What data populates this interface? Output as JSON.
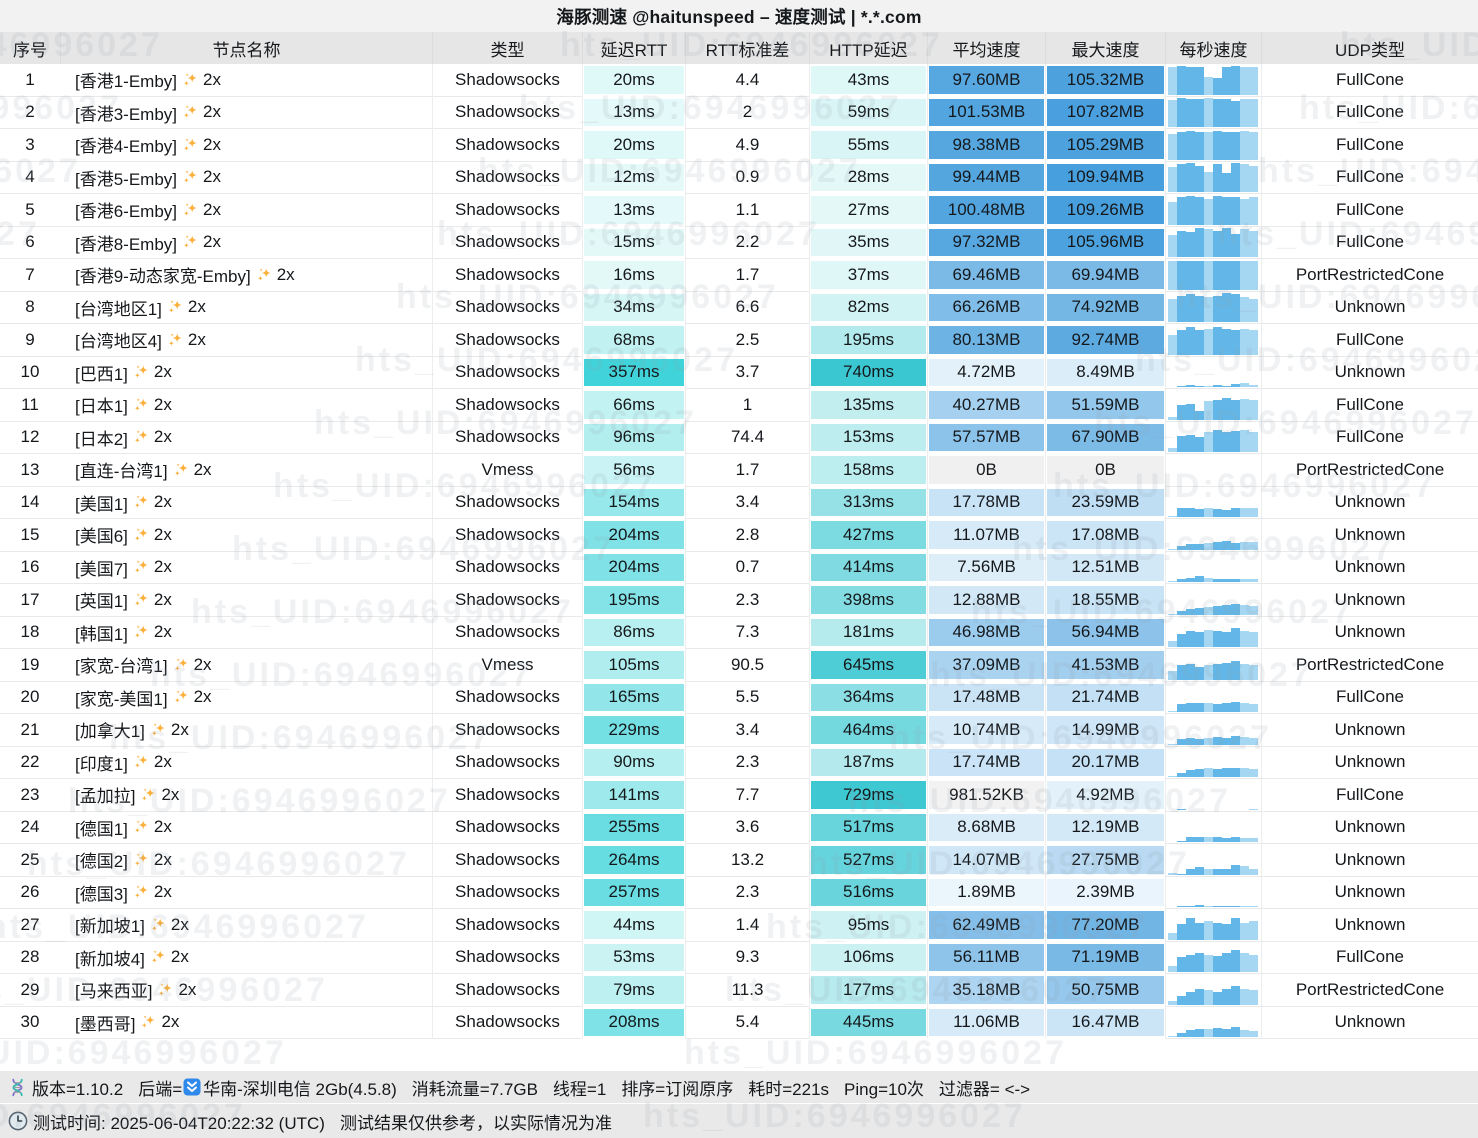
{
  "title": "海豚测速 @haitunspeed – 速度测试 | *.*.com",
  "watermark": "hts_UID:6946996027",
  "columns": [
    "序号",
    "节点名称",
    "类型",
    "延迟RTT",
    "RTT标准差",
    "HTTP延迟",
    "平均速度",
    "最大速度",
    "每秒速度",
    "UDP类型"
  ],
  "colors": {
    "latency_light": "#f1fcfb",
    "latency_deep": "#40d4da",
    "http_deep": "#3bc7d2",
    "speed_light": "#f1f8fd",
    "speed_deep": "#479fdd",
    "zero_grey": "#f0f0f0",
    "kb_grey": "#f2f2f2",
    "bar_main": "#63b7e8",
    "bar_light": "#a5d6f2",
    "sparkle_orange": "#fbb03b"
  },
  "rows": [
    {
      "n": "1",
      "name": "[香港1-Emby]",
      "mult": "2x",
      "type": "Shadowsocks",
      "rtt": "20ms",
      "rttv": 20,
      "std": "4.4",
      "http": "43ms",
      "httpv": 43,
      "avg": "97.60MB",
      "avgv": 97.6,
      "max": "105.32MB",
      "maxv": 105.32,
      "udp": "FullCone",
      "bars": [
        0.97,
        1,
        0.95,
        0.98,
        0.62,
        0.6,
        0.97,
        1,
        0.98,
        0.96
      ]
    },
    {
      "n": "2",
      "name": "[香港3-Emby]",
      "mult": "2x",
      "type": "Shadowsocks",
      "rtt": "13ms",
      "rttv": 13,
      "std": "2",
      "http": "59ms",
      "httpv": 59,
      "avg": "101.53MB",
      "avgv": 101.53,
      "max": "107.82MB",
      "maxv": 107.82,
      "udp": "FullCone",
      "bars": [
        0.93,
        1,
        0.96,
        0.98,
        1,
        0.97,
        0.95,
        0.9,
        0.97,
        0.95
      ]
    },
    {
      "n": "3",
      "name": "[香港4-Emby]",
      "mult": "2x",
      "type": "Shadowsocks",
      "rtt": "20ms",
      "rttv": 20,
      "std": "4.9",
      "http": "55ms",
      "httpv": 55,
      "avg": "98.38MB",
      "avgv": 98.38,
      "max": "105.29MB",
      "maxv": 105.29,
      "udp": "FullCone",
      "bars": [
        0.9,
        0.97,
        1,
        0.95,
        0.97,
        1,
        0.98,
        0.96,
        1,
        0.97
      ]
    },
    {
      "n": "4",
      "name": "[香港5-Emby]",
      "mult": "2x",
      "type": "Shadowsocks",
      "rtt": "12ms",
      "rttv": 12,
      "std": "0.9",
      "http": "28ms",
      "httpv": 28,
      "avg": "99.44MB",
      "avgv": 99.44,
      "max": "109.94MB",
      "maxv": 109.94,
      "udp": "FullCone",
      "bars": [
        0.85,
        0.95,
        1,
        0.9,
        0.7,
        0.97,
        0.65,
        1,
        0.95,
        0.9
      ]
    },
    {
      "n": "5",
      "name": "[香港6-Emby]",
      "mult": "2x",
      "type": "Shadowsocks",
      "rtt": "13ms",
      "rttv": 13,
      "std": "1.1",
      "http": "27ms",
      "httpv": 27,
      "avg": "100.48MB",
      "avgv": 100.48,
      "max": "109.26MB",
      "maxv": 109.26,
      "udp": "FullCone",
      "bars": [
        0.8,
        0.95,
        1,
        0.97,
        0.9,
        1,
        0.95,
        0.97,
        0.9,
        0.95
      ]
    },
    {
      "n": "6",
      "name": "[香港8-Emby]",
      "mult": "2x",
      "type": "Shadowsocks",
      "rtt": "15ms",
      "rttv": 15,
      "std": "2.2",
      "http": "35ms",
      "httpv": 35,
      "avg": "97.32MB",
      "avgv": 97.32,
      "max": "105.96MB",
      "maxv": 105.96,
      "udp": "FullCone",
      "bars": [
        0.75,
        0.9,
        0.85,
        1,
        0.95,
        0.9,
        1,
        0.8,
        0.95,
        0.9
      ]
    },
    {
      "n": "7",
      "name": "[香港9-动态家宽-Emby]",
      "mult": "2x",
      "type": "Shadowsocks",
      "rtt": "16ms",
      "rttv": 16,
      "std": "1.7",
      "http": "37ms",
      "httpv": 37,
      "avg": "69.46MB",
      "avgv": 69.46,
      "max": "69.94MB",
      "maxv": 69.94,
      "udp": "PortRestrictedCone",
      "bars": [
        1,
        1,
        1,
        1,
        1,
        1,
        1,
        1,
        1,
        1
      ]
    },
    {
      "n": "8",
      "name": "[台湾地区1]",
      "mult": "2x",
      "type": "Shadowsocks",
      "rtt": "34ms",
      "rttv": 34,
      "std": "6.6",
      "http": "82ms",
      "httpv": 82,
      "avg": "66.26MB",
      "avgv": 66.26,
      "max": "74.92MB",
      "maxv": 74.92,
      "udp": "Unknown",
      "bars": [
        0.8,
        0.9,
        0.95,
        0.9,
        0.85,
        0.9,
        1,
        0.95,
        0.85,
        0.8
      ]
    },
    {
      "n": "9",
      "name": "[台湾地区4]",
      "mult": "2x",
      "type": "Shadowsocks",
      "rtt": "68ms",
      "rttv": 68,
      "std": "2.5",
      "http": "195ms",
      "httpv": 195,
      "avg": "80.13MB",
      "avgv": 80.13,
      "max": "92.74MB",
      "maxv": 92.74,
      "udp": "FullCone",
      "bars": [
        0.7,
        0.85,
        0.95,
        0.85,
        0.9,
        0.95,
        0.9,
        0.85,
        0.9,
        0.85
      ]
    },
    {
      "n": "10",
      "name": "[巴西1]",
      "mult": "2x",
      "type": "Shadowsocks",
      "rtt": "357ms",
      "rttv": 357,
      "std": "3.7",
      "http": "740ms",
      "httpv": 740,
      "avg": "4.72MB",
      "avgv": 4.72,
      "max": "8.49MB",
      "maxv": 8.49,
      "udp": "Unknown",
      "bars": [
        0,
        0.04,
        0.06,
        0.05,
        0.04,
        0.06,
        0.05,
        0.12,
        0.15,
        0.08
      ]
    },
    {
      "n": "11",
      "name": "[日本1]",
      "mult": "2x",
      "type": "Shadowsocks",
      "rtt": "66ms",
      "rttv": 66,
      "std": "1",
      "http": "135ms",
      "httpv": 135,
      "avg": "40.27MB",
      "avgv": 40.27,
      "max": "51.59MB",
      "maxv": 51.59,
      "udp": "FullCone",
      "bars": [
        0.1,
        0.5,
        0.55,
        0.3,
        0.65,
        0.7,
        0.75,
        0.7,
        0.72,
        0.68
      ]
    },
    {
      "n": "12",
      "name": "[日本2]",
      "mult": "2x",
      "type": "Shadowsocks",
      "rtt": "96ms",
      "rttv": 96,
      "std": "74.4",
      "http": "153ms",
      "httpv": 153,
      "avg": "57.57MB",
      "avgv": 57.57,
      "max": "67.90MB",
      "maxv": 67.9,
      "udp": "FullCone",
      "bars": [
        0.15,
        0.55,
        0.6,
        0.5,
        0.7,
        0.75,
        0.7,
        0.72,
        0.75,
        0.7
      ]
    },
    {
      "n": "13",
      "name": "[直连-台湾1]",
      "mult": "2x",
      "type": "Vmess",
      "rtt": "56ms",
      "rttv": 56,
      "std": "1.7",
      "http": "158ms",
      "httpv": 158,
      "avg": "0B",
      "avgv": 0,
      "max": "0B",
      "maxv": 0,
      "udp": "PortRestrictedCone",
      "bars": [
        0,
        0,
        0,
        0,
        0,
        0,
        0,
        0,
        0,
        0
      ]
    },
    {
      "n": "14",
      "name": "[美国1]",
      "mult": "2x",
      "type": "Shadowsocks",
      "rtt": "154ms",
      "rttv": 154,
      "std": "3.4",
      "http": "313ms",
      "httpv": 313,
      "avg": "17.78MB",
      "avgv": 17.78,
      "max": "23.59MB",
      "maxv": 23.59,
      "udp": "Unknown",
      "bars": [
        0.05,
        0.3,
        0.3,
        0.28,
        0.3,
        0.28,
        0.25,
        0.3,
        0.32,
        0.3
      ]
    },
    {
      "n": "15",
      "name": "[美国6]",
      "mult": "2x",
      "type": "Shadowsocks",
      "rtt": "204ms",
      "rttv": 204,
      "std": "2.8",
      "http": "427ms",
      "httpv": 427,
      "avg": "11.07MB",
      "avgv": 11.07,
      "max": "17.08MB",
      "maxv": 17.08,
      "udp": "Unknown",
      "bars": [
        0.02,
        0.15,
        0.2,
        0.22,
        0.25,
        0.28,
        0.3,
        0.25,
        0.28,
        0.26
      ]
    },
    {
      "n": "16",
      "name": "[美国7]",
      "mult": "2x",
      "type": "Shadowsocks",
      "rtt": "204ms",
      "rttv": 204,
      "std": "0.7",
      "http": "414ms",
      "httpv": 414,
      "avg": "7.56MB",
      "avgv": 7.56,
      "max": "12.51MB",
      "maxv": 12.51,
      "udp": "Unknown",
      "bars": [
        0.02,
        0.1,
        0.15,
        0.2,
        0.15,
        0.12,
        0.12,
        0.1,
        0.12,
        0.1
      ]
    },
    {
      "n": "17",
      "name": "[英国1]",
      "mult": "2x",
      "type": "Shadowsocks",
      "rtt": "195ms",
      "rttv": 195,
      "std": "2.3",
      "http": "398ms",
      "httpv": 398,
      "avg": "12.88MB",
      "avgv": 12.88,
      "max": "18.55MB",
      "maxv": 18.55,
      "udp": "Unknown",
      "bars": [
        0.05,
        0.15,
        0.2,
        0.25,
        0.28,
        0.3,
        0.35,
        0.38,
        0.35,
        0.3
      ]
    },
    {
      "n": "18",
      "name": "[韩国1]",
      "mult": "2x",
      "type": "Shadowsocks",
      "rtt": "86ms",
      "rttv": 86,
      "std": "7.3",
      "http": "181ms",
      "httpv": 181,
      "avg": "46.98MB",
      "avgv": 46.98,
      "max": "56.94MB",
      "maxv": 56.94,
      "udp": "Unknown",
      "bars": [
        0.2,
        0.45,
        0.55,
        0.5,
        0.6,
        0.55,
        0.5,
        0.65,
        0.55,
        0.5
      ]
    },
    {
      "n": "19",
      "name": "[家宽-台湾1]",
      "mult": "2x",
      "type": "Vmess",
      "rtt": "105ms",
      "rttv": 105,
      "std": "90.5",
      "http": "645ms",
      "httpv": 645,
      "avg": "37.09MB",
      "avgv": 37.09,
      "max": "41.53MB",
      "maxv": 41.53,
      "udp": "PortRestrictedCone",
      "bars": [
        0.3,
        0.5,
        0.55,
        0.45,
        0.5,
        0.55,
        0.6,
        0.65,
        0.55,
        0.5
      ]
    },
    {
      "n": "20",
      "name": "[家宽-美国1]",
      "mult": "2x",
      "type": "Shadowsocks",
      "rtt": "165ms",
      "rttv": 165,
      "std": "5.5",
      "http": "364ms",
      "httpv": 364,
      "avg": "17.48MB",
      "avgv": 17.48,
      "max": "21.74MB",
      "maxv": 21.74,
      "udp": "FullCone",
      "bars": [
        0.05,
        0.28,
        0.3,
        0.32,
        0.3,
        0.28,
        0.3,
        0.35,
        0.3,
        0.28
      ]
    },
    {
      "n": "21",
      "name": "[加拿大1]",
      "mult": "2x",
      "type": "Shadowsocks",
      "rtt": "229ms",
      "rttv": 229,
      "std": "3.4",
      "http": "464ms",
      "httpv": 464,
      "avg": "10.74MB",
      "avgv": 10.74,
      "max": "14.99MB",
      "maxv": 14.99,
      "udp": "Unknown",
      "bars": [
        0.04,
        0.2,
        0.25,
        0.22,
        0.25,
        0.28,
        0.25,
        0.3,
        0.28,
        0.25
      ]
    },
    {
      "n": "22",
      "name": "[印度1]",
      "mult": "2x",
      "type": "Shadowsocks",
      "rtt": "90ms",
      "rttv": 90,
      "std": "2.3",
      "http": "187ms",
      "httpv": 187,
      "avg": "17.74MB",
      "avgv": 17.74,
      "max": "20.17MB",
      "maxv": 20.17,
      "udp": "Unknown",
      "bars": [
        0.05,
        0.15,
        0.25,
        0.28,
        0.3,
        0.28,
        0.3,
        0.32,
        0.3,
        0.28
      ]
    },
    {
      "n": "23",
      "name": "[孟加拉]",
      "mult": "2x",
      "type": "Shadowsocks",
      "rtt": "141ms",
      "rttv": 141,
      "std": "7.7",
      "http": "729ms",
      "httpv": 729,
      "avg": "981.52KB",
      "avgv": 0.96,
      "max": "4.92MB",
      "maxv": 4.92,
      "udp": "FullCone",
      "bars": [
        0,
        0.03,
        0,
        0,
        0,
        0,
        0,
        0,
        0,
        0.02
      ]
    },
    {
      "n": "24",
      "name": "[德国1]",
      "mult": "2x",
      "type": "Shadowsocks",
      "rtt": "255ms",
      "rttv": 255,
      "std": "3.6",
      "http": "517ms",
      "httpv": 517,
      "avg": "8.68MB",
      "avgv": 8.68,
      "max": "12.19MB",
      "maxv": 12.19,
      "udp": "Unknown",
      "bars": [
        0,
        0.05,
        0.18,
        0.18,
        0.16,
        0.16,
        0.15,
        0.16,
        0.15,
        0.15
      ]
    },
    {
      "n": "25",
      "name": "[德国2]",
      "mult": "2x",
      "type": "Shadowsocks",
      "rtt": "264ms",
      "rttv": 264,
      "std": "13.2",
      "http": "527ms",
      "httpv": 527,
      "avg": "14.07MB",
      "avgv": 14.07,
      "max": "27.75MB",
      "maxv": 27.75,
      "udp": "Unknown",
      "bars": [
        0.08,
        0.05,
        0.2,
        0.28,
        0.22,
        0.2,
        0.2,
        0.35,
        0.3,
        0.2
      ]
    },
    {
      "n": "26",
      "name": "[德国3]",
      "mult": "2x",
      "type": "Shadowsocks",
      "rtt": "257ms",
      "rttv": 257,
      "std": "2.3",
      "http": "516ms",
      "httpv": 516,
      "avg": "1.89MB",
      "avgv": 1.89,
      "max": "2.39MB",
      "maxv": 2.39,
      "udp": "Unknown",
      "bars": [
        0,
        0.03,
        0.05,
        0.06,
        0.05,
        0.05,
        0.04,
        0.05,
        0.04,
        0.04
      ]
    },
    {
      "n": "27",
      "name": "[新加坡1]",
      "mult": "2x",
      "type": "Shadowsocks",
      "rtt": "44ms",
      "rttv": 44,
      "std": "1.4",
      "http": "95ms",
      "httpv": 95,
      "avg": "62.49MB",
      "avgv": 62.49,
      "max": "77.20MB",
      "maxv": 77.2,
      "udp": "Unknown",
      "bars": [
        0.25,
        0.55,
        0.75,
        0.6,
        0.65,
        0.6,
        0.55,
        0.75,
        0.6,
        0.65
      ]
    },
    {
      "n": "28",
      "name": "[新加坡4]",
      "mult": "2x",
      "type": "Shadowsocks",
      "rtt": "53ms",
      "rttv": 53,
      "std": "9.3",
      "http": "106ms",
      "httpv": 106,
      "avg": "56.11MB",
      "avgv": 56.11,
      "max": "71.19MB",
      "maxv": 71.19,
      "udp": "FullCone",
      "bars": [
        0.2,
        0.5,
        0.6,
        0.65,
        0.6,
        0.55,
        0.65,
        0.75,
        0.65,
        0.6
      ]
    },
    {
      "n": "29",
      "name": "[马来西亚]",
      "mult": "2x",
      "type": "Shadowsocks",
      "rtt": "79ms",
      "rttv": 79,
      "std": "11.3",
      "http": "177ms",
      "httpv": 177,
      "avg": "35.18MB",
      "avgv": 35.18,
      "max": "50.75MB",
      "maxv": 50.75,
      "udp": "PortRestrictedCone",
      "bars": [
        0.15,
        0.3,
        0.45,
        0.55,
        0.5,
        0.45,
        0.55,
        0.65,
        0.55,
        0.5
      ]
    },
    {
      "n": "30",
      "name": "[墨西哥]",
      "mult": "2x",
      "type": "Shadowsocks",
      "rtt": "208ms",
      "rttv": 208,
      "std": "5.4",
      "http": "445ms",
      "httpv": 445,
      "avg": "11.06MB",
      "avgv": 11.06,
      "max": "16.47MB",
      "maxv": 16.47,
      "udp": "Unknown",
      "bars": [
        0.04,
        0.15,
        0.25,
        0.28,
        0.26,
        0.3,
        0.28,
        0.35,
        0.25,
        0.2
      ]
    }
  ],
  "scales": {
    "rtt_max": 357,
    "http_max": 740,
    "speed_max": 110
  },
  "footer1": {
    "version": "版本=1.10.2",
    "backend_label": "后端=",
    "backend": "华南-深圳电信 2Gb(4.5.8)",
    "traffic": "消耗流量=7.7GB",
    "threads": "线程=1",
    "sort": "排序=订阅原序",
    "duration": "耗时=221s",
    "ping": "Ping=10次",
    "filter": "过滤器= <->"
  },
  "footer2": {
    "time": "测试时间: 2025-06-04T20:22:32 (UTC)",
    "note": "测试结果仅供参考，以实际情况为准"
  }
}
